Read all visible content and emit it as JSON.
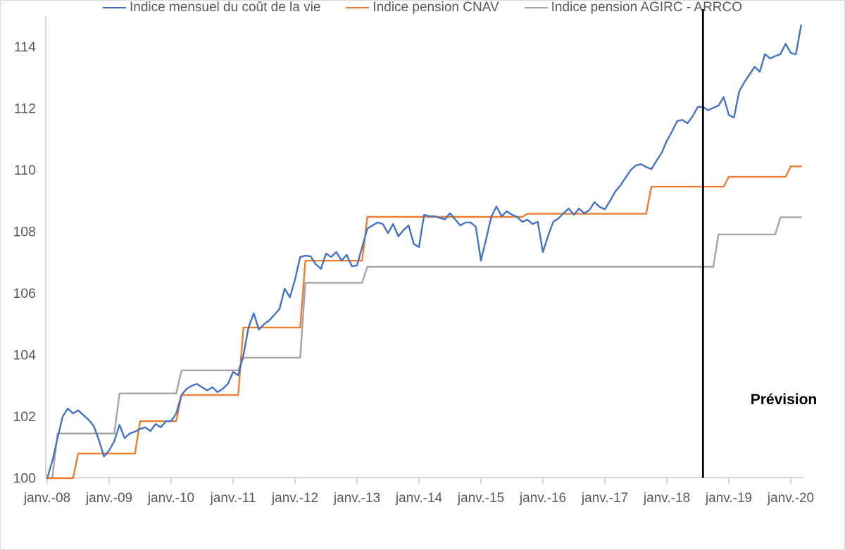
{
  "chart_data": {
    "type": "line",
    "title": "",
    "x_axis": {
      "tick_labels": [
        "janv.-08",
        "janv.-09",
        "janv.-10",
        "janv.-11",
        "janv.-12",
        "janv.-13",
        "janv.-14",
        "janv.-15",
        "janv.-16",
        "janv.-17",
        "janv.-18",
        "janv.-19",
        "janv.-20"
      ],
      "months_per_tick": 12,
      "start_month": "janv.-08",
      "end_month": "mars-20"
    },
    "y_axis": {
      "ticks": [
        100,
        102,
        104,
        106,
        108,
        110,
        112,
        114
      ],
      "min": 100,
      "max": 115
    },
    "layout": {
      "grid": false,
      "legend_position": "bottom"
    },
    "style": {
      "axis_color": "#BFBFBF",
      "text_color": "#595959",
      "forecast_line_color": "#000000",
      "background": "#FFFFFF"
    },
    "forecast_marker": {
      "label": "Prévision",
      "month_index": 127
    },
    "series": [
      {
        "name": "Indice mensuel du coût de la vie",
        "color": "#4472C4",
        "values": [
          100.0,
          100.55,
          101.3,
          102.0,
          102.26,
          102.1,
          102.2,
          102.05,
          101.9,
          101.7,
          101.25,
          100.7,
          100.9,
          101.2,
          101.73,
          101.3,
          101.45,
          101.51,
          101.6,
          101.65,
          101.53,
          101.76,
          101.65,
          101.85,
          101.85,
          102.1,
          102.7,
          102.9,
          103.0,
          103.06,
          102.95,
          102.85,
          102.95,
          102.79,
          102.9,
          103.06,
          103.45,
          103.34,
          104.0,
          104.9,
          105.35,
          104.82,
          105.0,
          105.12,
          105.3,
          105.5,
          106.15,
          105.87,
          106.45,
          107.18,
          107.22,
          107.2,
          106.95,
          106.79,
          107.29,
          107.18,
          107.34,
          107.06,
          107.25,
          106.88,
          106.9,
          107.5,
          108.1,
          108.2,
          108.3,
          108.25,
          107.95,
          108.25,
          107.85,
          108.05,
          108.2,
          107.6,
          107.5,
          108.55,
          108.5,
          108.5,
          108.45,
          108.4,
          108.6,
          108.4,
          108.2,
          108.3,
          108.3,
          108.16,
          107.06,
          107.75,
          108.48,
          108.82,
          108.5,
          108.66,
          108.55,
          108.48,
          108.32,
          108.39,
          108.25,
          108.32,
          107.34,
          107.86,
          108.32,
          108.43,
          108.6,
          108.75,
          108.55,
          108.75,
          108.6,
          108.7,
          108.96,
          108.8,
          108.73,
          109.0,
          109.3,
          109.5,
          109.75,
          110.0,
          110.15,
          110.19,
          110.1,
          110.03,
          110.3,
          110.56,
          110.95,
          111.25,
          111.59,
          111.63,
          111.52,
          111.75,
          112.05,
          112.05,
          111.94,
          112.02,
          112.09,
          112.37,
          111.79,
          111.7,
          112.55,
          112.85,
          113.1,
          113.35,
          113.19,
          113.76,
          113.62,
          113.7,
          113.76,
          114.1,
          113.8,
          113.76,
          114.7
        ]
      },
      {
        "name": "Indice pension CNAV",
        "color": "#ED7D31",
        "values": [
          100.0,
          100.0,
          100.0,
          100.0,
          100.0,
          100.0,
          100.8,
          100.8,
          100.8,
          100.8,
          100.8,
          100.8,
          100.8,
          100.8,
          100.8,
          100.8,
          100.8,
          100.8,
          101.85,
          101.85,
          101.85,
          101.85,
          101.85,
          101.85,
          101.85,
          101.85,
          102.7,
          102.7,
          102.7,
          102.7,
          102.7,
          102.7,
          102.7,
          102.7,
          102.7,
          102.7,
          102.7,
          102.7,
          104.89,
          104.89,
          104.89,
          104.89,
          104.89,
          104.89,
          104.89,
          104.89,
          104.89,
          104.89,
          104.89,
          104.89,
          107.06,
          107.06,
          107.06,
          107.06,
          107.06,
          107.06,
          107.06,
          107.06,
          107.06,
          107.06,
          107.06,
          107.06,
          108.48,
          108.48,
          108.48,
          108.48,
          108.48,
          108.48,
          108.48,
          108.48,
          108.48,
          108.48,
          108.48,
          108.48,
          108.48,
          108.48,
          108.48,
          108.48,
          108.48,
          108.48,
          108.48,
          108.48,
          108.48,
          108.48,
          108.48,
          108.48,
          108.48,
          108.48,
          108.48,
          108.48,
          108.48,
          108.48,
          108.48,
          108.58,
          108.58,
          108.58,
          108.58,
          108.58,
          108.58,
          108.58,
          108.58,
          108.58,
          108.58,
          108.58,
          108.58,
          108.58,
          108.58,
          108.58,
          108.58,
          108.58,
          108.58,
          108.58,
          108.58,
          108.58,
          108.58,
          108.58,
          108.58,
          109.46,
          109.46,
          109.46,
          109.46,
          109.46,
          109.46,
          109.46,
          109.46,
          109.46,
          109.46,
          109.46,
          109.46,
          109.46,
          109.46,
          109.46,
          109.78,
          109.78,
          109.78,
          109.78,
          109.78,
          109.78,
          109.78,
          109.78,
          109.78,
          109.78,
          109.78,
          109.78,
          110.12,
          110.12,
          110.12
        ]
      },
      {
        "name": "Indice pension AGIRC - ARRCO",
        "color": "#A5A5A5",
        "values": [
          100.0,
          100.0,
          101.45,
          101.45,
          101.45,
          101.45,
          101.45,
          101.45,
          101.45,
          101.45,
          101.45,
          101.45,
          101.45,
          101.45,
          102.75,
          102.75,
          102.75,
          102.75,
          102.75,
          102.75,
          102.75,
          102.75,
          102.75,
          102.75,
          102.75,
          102.75,
          103.5,
          103.5,
          103.5,
          103.5,
          103.5,
          103.5,
          103.5,
          103.5,
          103.5,
          103.5,
          103.5,
          103.5,
          103.91,
          103.91,
          103.91,
          103.91,
          103.91,
          103.91,
          103.91,
          103.91,
          103.91,
          103.91,
          103.91,
          103.91,
          106.34,
          106.34,
          106.34,
          106.34,
          106.34,
          106.34,
          106.34,
          106.34,
          106.34,
          106.34,
          106.34,
          106.34,
          106.86,
          106.86,
          106.86,
          106.86,
          106.86,
          106.86,
          106.86,
          106.86,
          106.86,
          106.86,
          106.86,
          106.86,
          106.86,
          106.86,
          106.86,
          106.86,
          106.86,
          106.86,
          106.86,
          106.86,
          106.86,
          106.86,
          106.86,
          106.86,
          106.86,
          106.86,
          106.86,
          106.86,
          106.86,
          106.86,
          106.86,
          106.86,
          106.86,
          106.86,
          106.86,
          106.86,
          106.86,
          106.86,
          106.86,
          106.86,
          106.86,
          106.86,
          106.86,
          106.86,
          106.86,
          106.86,
          106.86,
          106.86,
          106.86,
          106.86,
          106.86,
          106.86,
          106.86,
          106.86,
          106.86,
          106.86,
          106.86,
          106.86,
          106.86,
          106.86,
          106.86,
          106.86,
          106.86,
          106.86,
          106.86,
          106.86,
          106.86,
          106.86,
          107.91,
          107.91,
          107.91,
          107.91,
          107.91,
          107.91,
          107.91,
          107.91,
          107.91,
          107.91,
          107.91,
          107.91,
          108.47,
          108.47,
          108.47,
          108.47,
          108.47
        ]
      }
    ]
  }
}
